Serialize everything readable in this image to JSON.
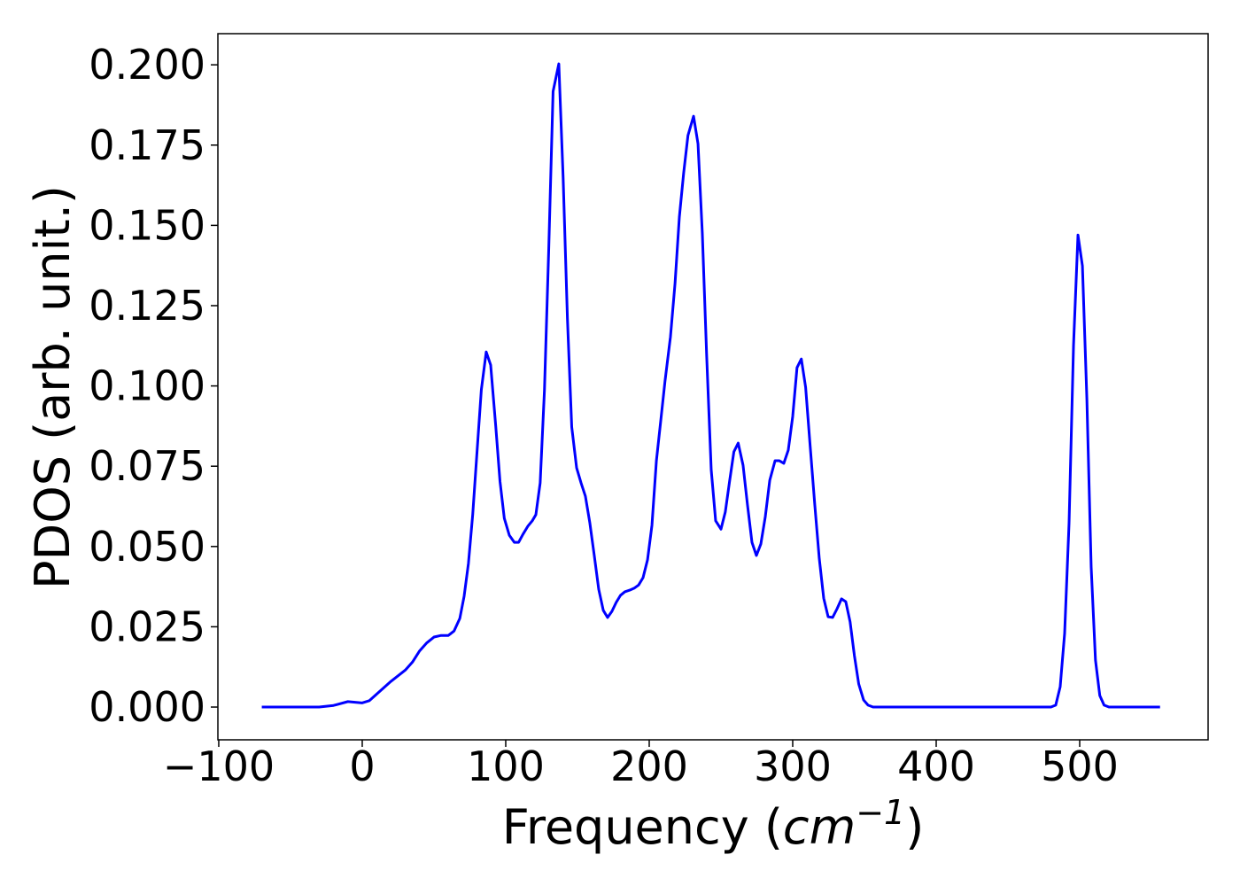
{
  "chart_data": {
    "type": "line",
    "xlabel": [
      "Frequency (",
      "cm",
      "−1",
      ")"
    ],
    "ylabel": "PDOS (arb. unit.)",
    "x": [
      -70,
      -30,
      -20,
      -10,
      0,
      5,
      10,
      20,
      30,
      35,
      40,
      45,
      50,
      55,
      60,
      64,
      68,
      71,
      74,
      77,
      80,
      83,
      86.4,
      89.5,
      93,
      96,
      99,
      102.5,
      106,
      109,
      112,
      115.4,
      118.5,
      121,
      124,
      127,
      130,
      133,
      137,
      140,
      143,
      146,
      149.4,
      152.5,
      155.5,
      158.6,
      161.7,
      164.8,
      168,
      171,
      174,
      177,
      180,
      183,
      186.4,
      189.5,
      192.6,
      195.7,
      198.8,
      201.9,
      205,
      208,
      211,
      214.8,
      218,
      221,
      224,
      227,
      230.9,
      234,
      237,
      240,
      243.2,
      246.3,
      250,
      253,
      256,
      259,
      262,
      265.4,
      268.5,
      271.6,
      274.7,
      277.8,
      280.9,
      284,
      287.7,
      290.7,
      293.8,
      296.9,
      300,
      303,
      306,
      309,
      312,
      315.4,
      318.5,
      321.6,
      324.7,
      327.8,
      330.9,
      334,
      337,
      340,
      343,
      346,
      349.4,
      352.5,
      356,
      480,
      483.3,
      486.4,
      489.5,
      492.6,
      495.7,
      498.8,
      501.9,
      505,
      508,
      511,
      514,
      517,
      520.4,
      556
    ],
    "series": [
      {
        "name": "PDOS",
        "color": "#0000ff",
        "values": [
          0,
          0,
          0.0005,
          0.0017,
          0.0013,
          0.002,
          0.004,
          0.008,
          0.0115,
          0.014,
          0.0175,
          0.02,
          0.0218,
          0.0223,
          0.0223,
          0.0237,
          0.0276,
          0.0345,
          0.0447,
          0.06,
          0.0795,
          0.0988,
          0.1106,
          0.1065,
          0.0877,
          0.0703,
          0.0588,
          0.0535,
          0.0513,
          0.0513,
          0.0538,
          0.0563,
          0.058,
          0.0599,
          0.0698,
          0.0988,
          0.143,
          0.1917,
          0.2003,
          0.165,
          0.121,
          0.0872,
          0.0745,
          0.0698,
          0.0657,
          0.0574,
          0.0472,
          0.0367,
          0.0301,
          0.0279,
          0.0298,
          0.0326,
          0.0348,
          0.0359,
          0.0364,
          0.037,
          0.038,
          0.0403,
          0.0458,
          0.0566,
          0.0767,
          0.089,
          0.1015,
          0.1153,
          0.132,
          0.1526,
          0.1663,
          0.178,
          0.184,
          0.1754,
          0.1476,
          0.1098,
          0.0739,
          0.058,
          0.0554,
          0.0607,
          0.0703,
          0.0795,
          0.0822,
          0.0753,
          0.0629,
          0.0513,
          0.0472,
          0.0508,
          0.0593,
          0.0706,
          0.0767,
          0.0767,
          0.0759,
          0.08,
          0.0905,
          0.1057,
          0.1084,
          0.0996,
          0.0822,
          0.0629,
          0.0463,
          0.0339,
          0.0281,
          0.0279,
          0.0306,
          0.0337,
          0.0328,
          0.0265,
          0.016,
          0.0072,
          0.0022,
          0.0006,
          0,
          0,
          0.0006,
          0.0063,
          0.0229,
          0.0574,
          0.1126,
          0.147,
          0.1374,
          0.096,
          0.0436,
          0.0146,
          0.0036,
          0.0006,
          0,
          0
        ]
      }
    ],
    "xlim": [
      -100.6,
      589.5
    ],
    "ylim": [
      -0.0102,
      0.2097
    ],
    "xticks": [
      {
        "value": -100,
        "label": "−100"
      },
      0,
      100,
      200,
      300,
      400,
      500
    ],
    "yticks": [
      {
        "value": 0,
        "label": "0.000"
      },
      {
        "value": 0.025,
        "label": "0.025"
      },
      {
        "value": 0.05,
        "label": "0.050"
      },
      {
        "value": 0.075,
        "label": "0.075"
      },
      {
        "value": 0.1,
        "label": "0.100"
      },
      {
        "value": 0.125,
        "label": "0.125"
      },
      {
        "value": 0.15,
        "label": "0.150"
      },
      {
        "value": 0.175,
        "label": "0.175"
      },
      {
        "value": 0.2,
        "label": "0.200"
      }
    ],
    "grid": false
  }
}
